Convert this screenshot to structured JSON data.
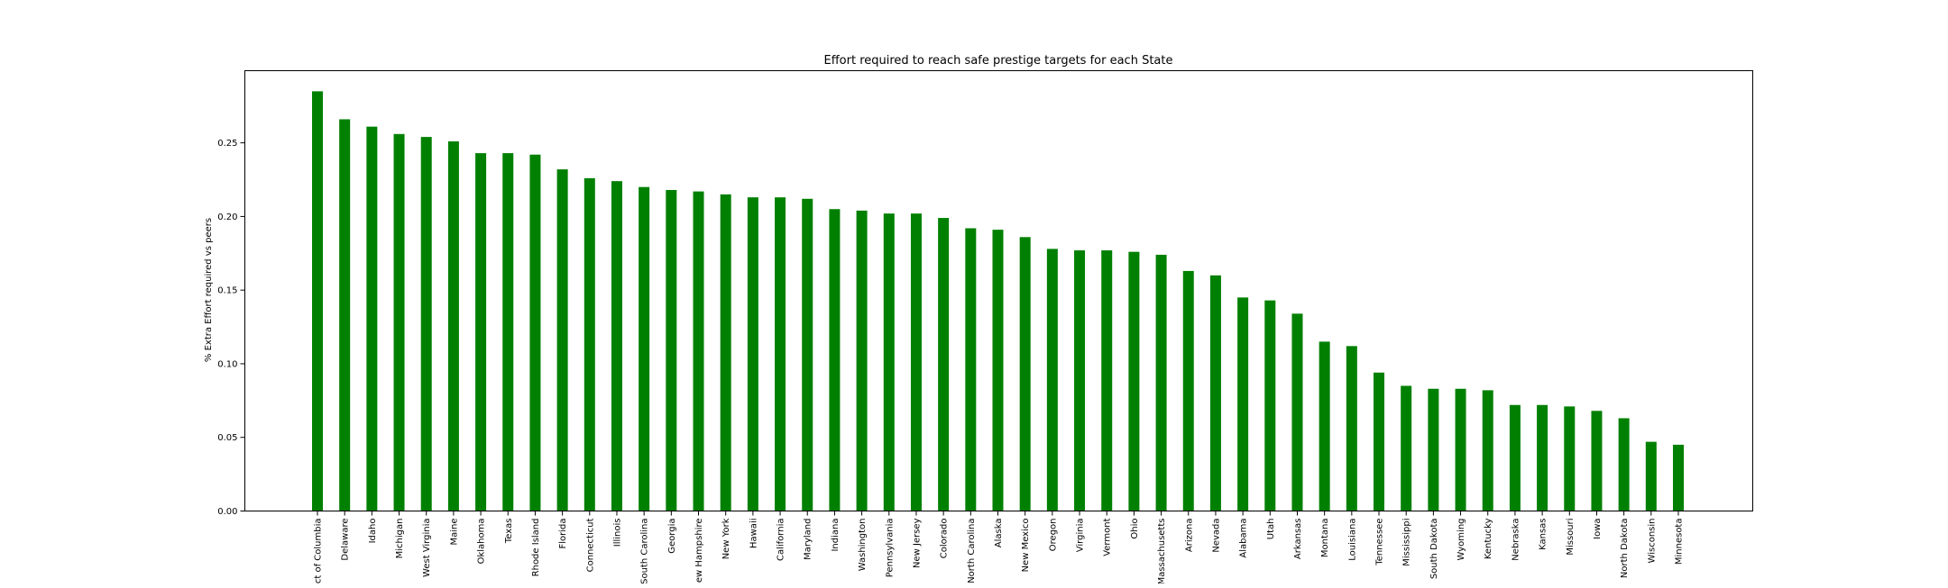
{
  "chart_data": {
    "type": "bar",
    "title": "Effort required to reach safe prestige targets for each State",
    "xlabel": "",
    "ylabel": "% Extra Effort required vs peers",
    "ylim": [
      0,
      0.299
    ],
    "yticks": [
      "0.00",
      "0.05",
      "0.10",
      "0.15",
      "0.20",
      "0.25"
    ],
    "grid": false,
    "bar_color": "#008000",
    "categories": [
      "District of Columbia",
      "Delaware",
      "Idaho",
      "Michigan",
      "West Virginia",
      "Maine",
      "Oklahoma",
      "Texas",
      "Rhode Island",
      "Florida",
      "Connecticut",
      "Illinois",
      "South Carolina",
      "Georgia",
      "New Hampshire",
      "New York",
      "Hawaii",
      "California",
      "Maryland",
      "Indiana",
      "Washington",
      "Pennsylvania",
      "New Jersey",
      "Colorado",
      "North Carolina",
      "Alaska",
      "New Mexico",
      "Oregon",
      "Virginia",
      "Vermont",
      "Ohio",
      "Massachusetts",
      "Arizona",
      "Nevada",
      "Alabama",
      "Utah",
      "Arkansas",
      "Montana",
      "Louisiana",
      "Tennessee",
      "Mississippi",
      "South Dakota",
      "Wyoming",
      "Kentucky",
      "Nebraska",
      "Kansas",
      "Missouri",
      "Iowa",
      "North Dakota",
      "Wisconsin",
      "Minnesota"
    ],
    "values": [
      0.285,
      0.266,
      0.261,
      0.256,
      0.254,
      0.251,
      0.243,
      0.243,
      0.242,
      0.232,
      0.226,
      0.224,
      0.22,
      0.218,
      0.217,
      0.215,
      0.213,
      0.213,
      0.212,
      0.205,
      0.204,
      0.202,
      0.202,
      0.199,
      0.192,
      0.191,
      0.186,
      0.178,
      0.177,
      0.177,
      0.176,
      0.174,
      0.163,
      0.16,
      0.145,
      0.143,
      0.134,
      0.115,
      0.112,
      0.094,
      0.085,
      0.083,
      0.083,
      0.082,
      0.072,
      0.072,
      0.071,
      0.068,
      0.063,
      0.047,
      0.045
    ]
  }
}
